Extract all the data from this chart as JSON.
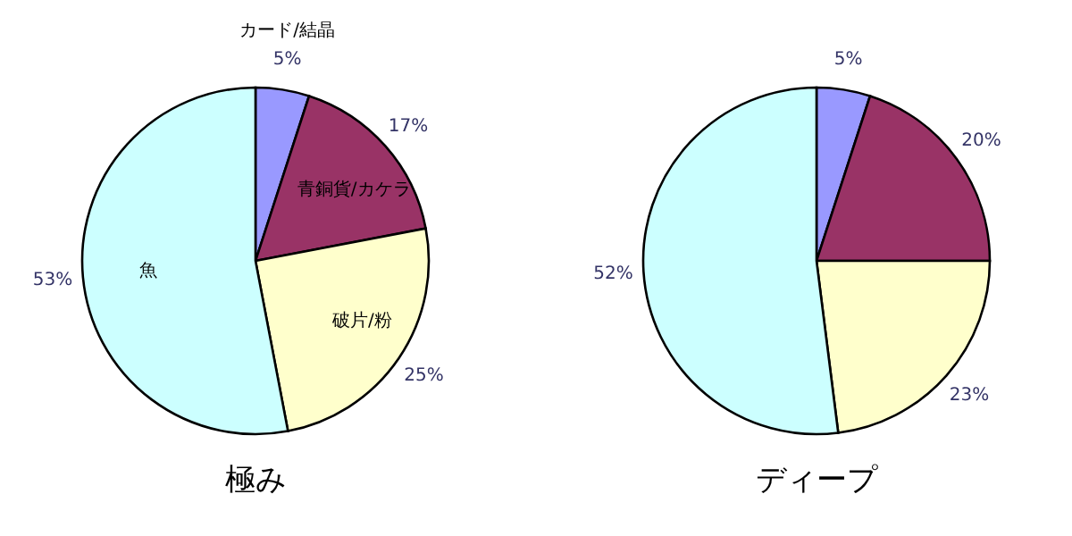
{
  "chart_data": [
    {
      "type": "pie",
      "title": "極み",
      "categories": [
        "カード/結晶",
        "青銅貨/カケラ",
        "破片/粉",
        "魚"
      ],
      "values": [
        5,
        17,
        25,
        53
      ],
      "value_labels": [
        "5%",
        "17%",
        "25%",
        "53%"
      ],
      "colors": [
        "#9999ff",
        "#993366",
        "#ffffcc",
        "#ccffff"
      ]
    },
    {
      "type": "pie",
      "title": "ディープ",
      "categories": [
        null,
        null,
        null,
        null
      ],
      "values": [
        5,
        20,
        23,
        52
      ],
      "value_labels": [
        "5%",
        "20%",
        "23%",
        "52%"
      ],
      "colors": [
        "#9999ff",
        "#993366",
        "#ffffcc",
        "#ccffff"
      ]
    }
  ]
}
